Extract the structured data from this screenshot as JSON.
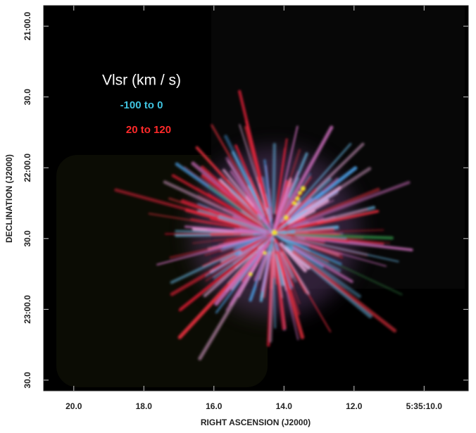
{
  "chart_data": {
    "type": "image",
    "x_label": "RIGHT ASCENSION (J2000)",
    "y_label": "DECLINATION (J2000)",
    "legend_title": "Vlsr  (km / s)",
    "series": [
      {
        "name": "-100 to 0",
        "color": "#3fc3e0"
      },
      {
        "name": "20 to 120",
        "color": "#ff2a2a"
      }
    ],
    "xlim": [
      20.86,
      8.74
    ],
    "xticks": [
      {
        "value": 20,
        "label": "20.0"
      },
      {
        "value": 18,
        "label": "18.0"
      },
      {
        "value": 16,
        "label": "16.0"
      },
      {
        "value": 14,
        "label": "14.0"
      },
      {
        "value": 12,
        "label": "12.0"
      },
      {
        "value": 10,
        "label": "5:35:10.0"
      }
    ],
    "ylim": [
      20.855,
      23.575
    ],
    "yticks": [
      {
        "value": 21,
        "label": "21:00.0"
      },
      {
        "value": 21.5,
        "label": "30.0"
      },
      {
        "value": 22,
        "label": "22:00.0"
      },
      {
        "value": 22.5,
        "label": "30.0"
      },
      {
        "value": 23,
        "label": "23:00.0"
      },
      {
        "value": 23.5,
        "label": "30.0"
      }
    ]
  }
}
